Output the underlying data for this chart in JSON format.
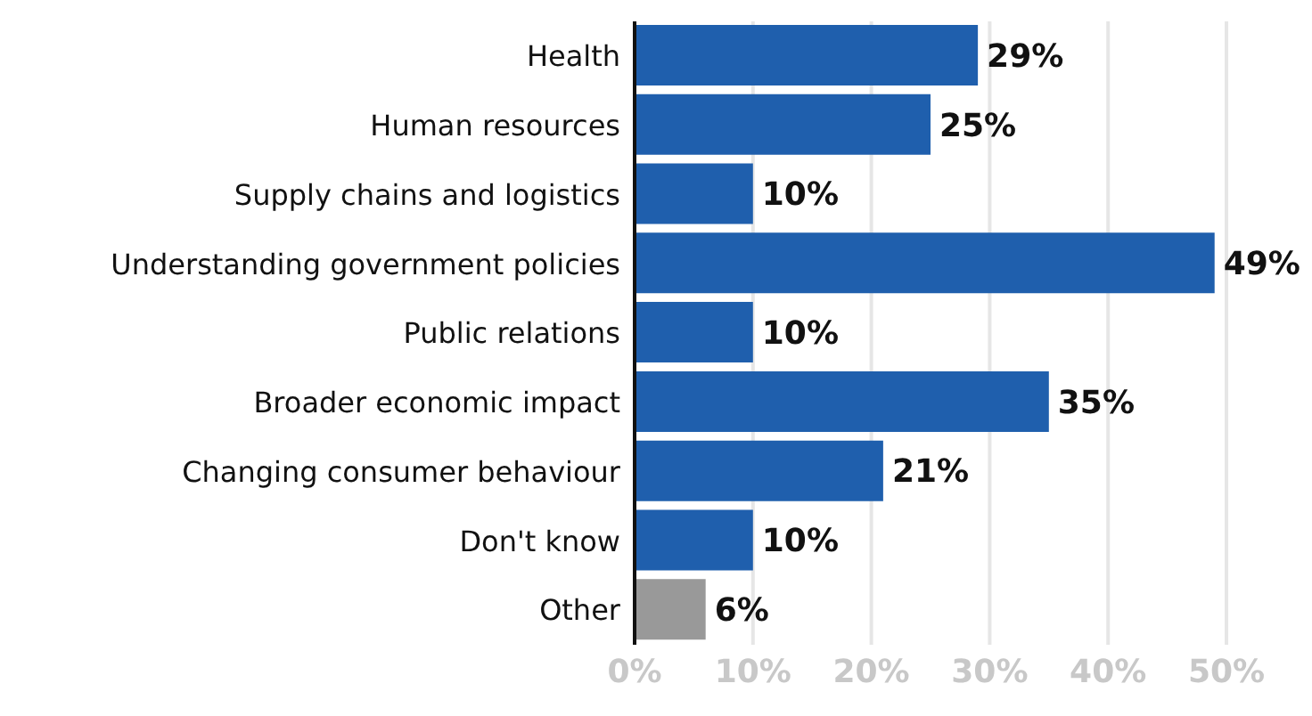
{
  "chart_data": {
    "type": "bar",
    "orientation": "horizontal",
    "categories": [
      "Health",
      "Human resources",
      "Supply chains and logistics",
      "Understanding government policies",
      "Public relations",
      "Broader economic impact",
      "Changing consumer behaviour",
      "Don't know",
      "Other"
    ],
    "values": [
      29,
      25,
      10,
      49,
      10,
      35,
      21,
      10,
      6
    ],
    "value_labels": [
      "29%",
      "25%",
      "10%",
      "49%",
      "10%",
      "35%",
      "21%",
      "10%",
      "6%"
    ],
    "colors": [
      "#1f5fad",
      "#1f5fad",
      "#1f5fad",
      "#1f5fad",
      "#1f5fad",
      "#1f5fad",
      "#1f5fad",
      "#1f5fad",
      "#999999"
    ],
    "xlim": [
      0,
      50
    ],
    "xticks": [
      {
        "value": 0,
        "label": "0%"
      },
      {
        "value": 10,
        "label": "10%"
      },
      {
        "value": 20,
        "label": "20%"
      },
      {
        "value": 30,
        "label": "30%"
      },
      {
        "value": 40,
        "label": "40%"
      },
      {
        "value": 50,
        "label": "50%"
      }
    ],
    "grid": "x"
  }
}
